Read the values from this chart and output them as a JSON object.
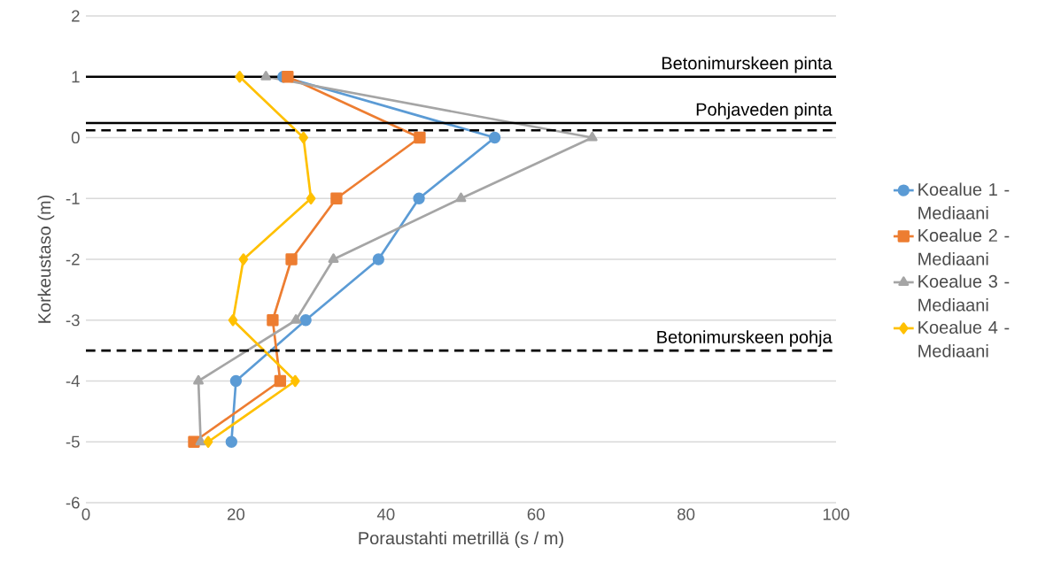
{
  "chart_data": {
    "type": "line",
    "xlabel": "Poraustahti metrillä (s / m)",
    "ylabel": "Korkeustaso (m)",
    "xlim": [
      0,
      100
    ],
    "xticks": [
      0,
      20,
      40,
      60,
      80,
      100
    ],
    "ylim": [
      -6,
      2
    ],
    "yticks": [
      -6,
      -5,
      -4,
      -3,
      -2,
      -1,
      0,
      1,
      2
    ],
    "grid": "y",
    "legend": "right",
    "series": [
      {
        "name": "Koealue 1 - Mediaani",
        "color": "#5b9bd5",
        "marker": "circle",
        "x": [
          26.3,
          54.5,
          44.4,
          39.0,
          29.3,
          20.0,
          19.4
        ],
        "values": [
          1,
          0,
          -1,
          -2,
          -3,
          -4,
          -5
        ]
      },
      {
        "name": "Koealue 2 - Mediaani",
        "color": "#ed7d31",
        "marker": "square",
        "x": [
          26.9,
          44.5,
          33.4,
          27.4,
          24.9,
          25.9,
          14.4
        ],
        "values": [
          1,
          0,
          -1,
          -2,
          -3,
          -4,
          -5
        ]
      },
      {
        "name": "Koealue 3 - Mediaani",
        "color": "#a5a5a5",
        "marker": "triangle",
        "x": [
          24.0,
          67.5,
          50.0,
          33.0,
          28.0,
          15.0,
          15.3
        ],
        "values": [
          1,
          0,
          -1,
          -2,
          -3,
          -4,
          -5
        ]
      },
      {
        "name": "Koealue 4 - Mediaani",
        "color": "#ffc000",
        "marker": "diamond",
        "x": [
          20.5,
          29.0,
          30.0,
          21.0,
          19.6,
          27.9,
          16.3
        ],
        "values": [
          1,
          0,
          -1,
          -2,
          -3,
          -4,
          -5
        ]
      }
    ],
    "ref_lines": [
      {
        "axis": "y",
        "value": 1,
        "label": "Betonimurskeen pinta",
        "color": "#000000",
        "line_style": "solid"
      },
      {
        "axis": "y",
        "value": 0.24,
        "label": "Pohjaveden pinta",
        "color": "#000000",
        "line_style": "solid"
      },
      {
        "axis": "y",
        "value": 0.12,
        "color": "#000000",
        "line_style": "dashed"
      },
      {
        "axis": "y",
        "value": -3.5,
        "label": "Betonimurskeen pohja",
        "color": "#000000",
        "line_style": "dashed"
      }
    ]
  }
}
